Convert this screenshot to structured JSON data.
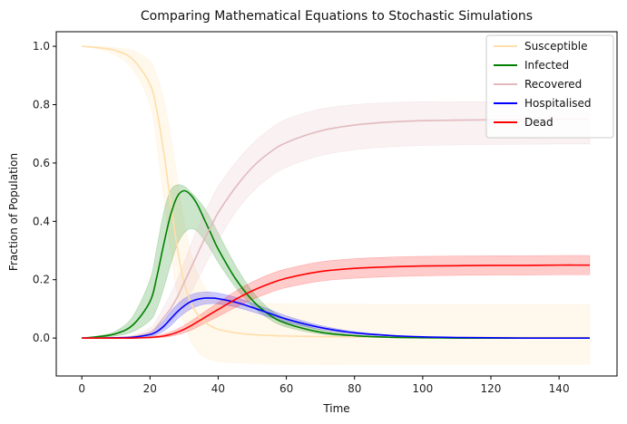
{
  "chart_data": {
    "type": "line",
    "title": "Comparing Mathematical Equations to Stochastic Simulations",
    "xlabel": "Time",
    "ylabel": "Fraction of Population",
    "xlim": [
      -7.5,
      157
    ],
    "ylim": [
      -0.13,
      1.05
    ],
    "x_ticks": [
      0,
      20,
      40,
      60,
      80,
      100,
      120,
      140
    ],
    "y_ticks": [
      0.0,
      0.2,
      0.4,
      0.6,
      0.8,
      1.0
    ],
    "x_tick_labels": [
      "0",
      "20",
      "40",
      "60",
      "80",
      "100",
      "120",
      "140"
    ],
    "y_tick_labels": [
      "0.0",
      "0.2",
      "0.4",
      "0.6",
      "0.8",
      "1.0"
    ],
    "grid": false,
    "legend_position": "top-right",
    "x": [
      0,
      5,
      10,
      15,
      20,
      22,
      24,
      26,
      28,
      30,
      32,
      34,
      36,
      38,
      40,
      45,
      50,
      55,
      60,
      70,
      80,
      90,
      100,
      110,
      120,
      130,
      140,
      149
    ],
    "series": [
      {
        "name": "Susceptible",
        "color": "#ffdeaa",
        "band_opacity": 0.22,
        "values": [
          1.0,
          0.995,
          0.985,
          0.955,
          0.87,
          0.78,
          0.64,
          0.47,
          0.31,
          0.19,
          0.12,
          0.08,
          0.055,
          0.04,
          0.03,
          0.018,
          0.012,
          0.009,
          0.007,
          0.005,
          0.004,
          0.003,
          0.003,
          0.002,
          0.002,
          0.002,
          0.002,
          0.002
        ],
        "lower": [
          1.0,
          0.99,
          0.97,
          0.92,
          0.8,
          0.66,
          0.48,
          0.3,
          0.15,
          0.05,
          -0.01,
          -0.045,
          -0.065,
          -0.075,
          -0.08,
          -0.085,
          -0.087,
          -0.088,
          -0.089,
          -0.09,
          -0.09,
          -0.09,
          -0.09,
          -0.09,
          -0.09,
          -0.09,
          -0.09,
          -0.09
        ],
        "upper": [
          1.0,
          1.0,
          0.995,
          0.985,
          0.95,
          0.9,
          0.82,
          0.7,
          0.55,
          0.4,
          0.29,
          0.22,
          0.175,
          0.15,
          0.135,
          0.125,
          0.12,
          0.118,
          0.117,
          0.116,
          0.116,
          0.115,
          0.115,
          0.115,
          0.115,
          0.115,
          0.115,
          0.115
        ]
      },
      {
        "name": "Infected",
        "color": "#008000",
        "band_opacity": 0.2,
        "values": [
          0.0,
          0.005,
          0.015,
          0.045,
          0.125,
          0.21,
          0.32,
          0.42,
          0.485,
          0.505,
          0.49,
          0.455,
          0.405,
          0.355,
          0.305,
          0.205,
          0.13,
          0.08,
          0.05,
          0.02,
          0.008,
          0.003,
          0.001,
          0.0,
          0.0,
          0.0,
          0.0,
          0.0
        ],
        "lower": [
          0.0,
          0.002,
          0.007,
          0.022,
          0.06,
          0.1,
          0.17,
          0.25,
          0.32,
          0.36,
          0.375,
          0.365,
          0.335,
          0.3,
          0.26,
          0.175,
          0.11,
          0.065,
          0.038,
          0.014,
          0.005,
          0.002,
          0.0,
          0.0,
          0.0,
          0.0,
          0.0,
          0.0
        ],
        "upper": [
          0.0,
          0.008,
          0.024,
          0.075,
          0.2,
          0.31,
          0.43,
          0.505,
          0.525,
          0.52,
          0.5,
          0.475,
          0.445,
          0.405,
          0.36,
          0.25,
          0.16,
          0.1,
          0.066,
          0.028,
          0.011,
          0.004,
          0.001,
          0.0,
          0.0,
          0.0,
          0.0,
          0.0
        ]
      },
      {
        "name": "Recovered",
        "color": "#e2babe",
        "band_opacity": 0.2,
        "values": [
          0.0,
          0.0,
          0.0,
          0.005,
          0.02,
          0.04,
          0.07,
          0.1,
          0.14,
          0.19,
          0.24,
          0.29,
          0.34,
          0.385,
          0.43,
          0.515,
          0.585,
          0.635,
          0.67,
          0.71,
          0.73,
          0.74,
          0.745,
          0.747,
          0.748,
          0.749,
          0.75,
          0.75
        ],
        "lower": [
          0.0,
          0.0,
          0.0,
          0.002,
          0.01,
          0.02,
          0.035,
          0.055,
          0.08,
          0.115,
          0.155,
          0.2,
          0.245,
          0.29,
          0.335,
          0.43,
          0.5,
          0.55,
          0.585,
          0.625,
          0.645,
          0.655,
          0.66,
          0.662,
          0.663,
          0.664,
          0.665,
          0.665
        ],
        "upper": [
          0.0,
          0.0,
          0.001,
          0.01,
          0.035,
          0.065,
          0.105,
          0.15,
          0.2,
          0.26,
          0.32,
          0.38,
          0.43,
          0.475,
          0.52,
          0.6,
          0.665,
          0.715,
          0.75,
          0.785,
          0.8,
          0.807,
          0.81,
          0.81,
          0.81,
          0.81,
          0.81,
          0.81
        ]
      },
      {
        "name": "Hospitalised",
        "color": "#0000ff",
        "band_opacity": 0.2,
        "values": [
          0.0,
          0.0,
          0.001,
          0.003,
          0.012,
          0.022,
          0.04,
          0.065,
          0.09,
          0.11,
          0.125,
          0.133,
          0.137,
          0.137,
          0.135,
          0.123,
          0.105,
          0.085,
          0.065,
          0.036,
          0.018,
          0.009,
          0.004,
          0.002,
          0.001,
          0.0,
          0.0,
          0.0
        ],
        "lower": [
          0.0,
          0.0,
          0.0,
          0.001,
          0.006,
          0.012,
          0.024,
          0.042,
          0.065,
          0.085,
          0.1,
          0.11,
          0.116,
          0.118,
          0.117,
          0.107,
          0.09,
          0.072,
          0.054,
          0.029,
          0.014,
          0.007,
          0.003,
          0.001,
          0.0,
          0.0,
          0.0,
          0.0
        ],
        "upper": [
          0.0,
          0.0,
          0.002,
          0.006,
          0.02,
          0.036,
          0.06,
          0.09,
          0.115,
          0.135,
          0.148,
          0.155,
          0.158,
          0.157,
          0.154,
          0.14,
          0.12,
          0.098,
          0.076,
          0.043,
          0.022,
          0.011,
          0.005,
          0.002,
          0.001,
          0.0,
          0.0,
          0.0
        ]
      },
      {
        "name": "Dead",
        "color": "#ff0000",
        "band_opacity": 0.2,
        "values": [
          0.0,
          0.0,
          0.0,
          0.0,
          0.002,
          0.004,
          0.007,
          0.012,
          0.02,
          0.03,
          0.042,
          0.056,
          0.07,
          0.084,
          0.098,
          0.132,
          0.162,
          0.186,
          0.205,
          0.228,
          0.239,
          0.244,
          0.247,
          0.248,
          0.249,
          0.249,
          0.25,
          0.25
        ],
        "lower": [
          0.0,
          0.0,
          0.0,
          0.0,
          0.0,
          0.001,
          0.003,
          0.006,
          0.011,
          0.018,
          0.027,
          0.038,
          0.05,
          0.062,
          0.074,
          0.104,
          0.132,
          0.155,
          0.173,
          0.195,
          0.205,
          0.21,
          0.213,
          0.215,
          0.216,
          0.216,
          0.217,
          0.217
        ],
        "upper": [
          0.0,
          0.0,
          0.0,
          0.001,
          0.005,
          0.009,
          0.014,
          0.021,
          0.031,
          0.043,
          0.058,
          0.074,
          0.09,
          0.106,
          0.122,
          0.16,
          0.192,
          0.218,
          0.237,
          0.261,
          0.272,
          0.277,
          0.28,
          0.281,
          0.282,
          0.282,
          0.283,
          0.283
        ]
      }
    ]
  }
}
